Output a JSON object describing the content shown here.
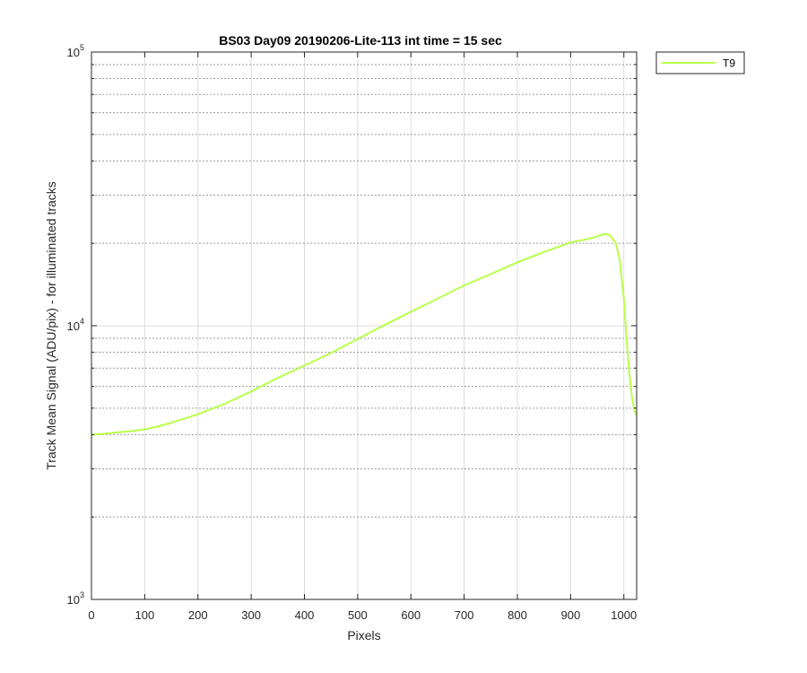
{
  "chart_data": {
    "type": "line",
    "title": "BS03 Day09 20190206-Lite-113 int time = 15 sec",
    "xlabel": "Pixels",
    "ylabel": "Track Mean Signal (ADU/pix) - for illuminated tracks",
    "xlim": [
      0,
      1024
    ],
    "ylim": [
      1000,
      100000
    ],
    "yscale": "log",
    "grid": true,
    "minor_grid": "dotted",
    "legend_position": "outside-top-right",
    "x_ticks": [
      0,
      100,
      200,
      300,
      400,
      500,
      600,
      700,
      800,
      900,
      1000
    ],
    "x_tick_labels": [
      "0",
      "100",
      "200",
      "300",
      "400",
      "500",
      "600",
      "700",
      "800",
      "900",
      "1000"
    ],
    "y_ticks": [
      {
        "value": 1000,
        "base": "10",
        "exp": "3"
      },
      {
        "value": 10000,
        "base": "10",
        "exp": "4"
      },
      {
        "value": 100000,
        "base": "10",
        "exp": "5"
      }
    ],
    "series": [
      {
        "name": "T9",
        "color": "#b8ff4a",
        "x": [
          0,
          25,
          50,
          75,
          100,
          125,
          150,
          175,
          200,
          250,
          300,
          350,
          400,
          450,
          500,
          550,
          600,
          650,
          700,
          750,
          800,
          850,
          900,
          925,
          950,
          965,
          975,
          985,
          992,
          1000,
          1005,
          1010,
          1015,
          1020,
          1024
        ],
        "values": [
          4000,
          4030,
          4080,
          4120,
          4180,
          4290,
          4420,
          4580,
          4750,
          5180,
          5750,
          6450,
          7150,
          7950,
          8950,
          10050,
          11250,
          12550,
          14050,
          15450,
          17050,
          18600,
          20150,
          20600,
          21200,
          21700,
          21300,
          20000,
          17500,
          12500,
          9000,
          6800,
          5500,
          4900,
          4700
        ]
      }
    ]
  }
}
